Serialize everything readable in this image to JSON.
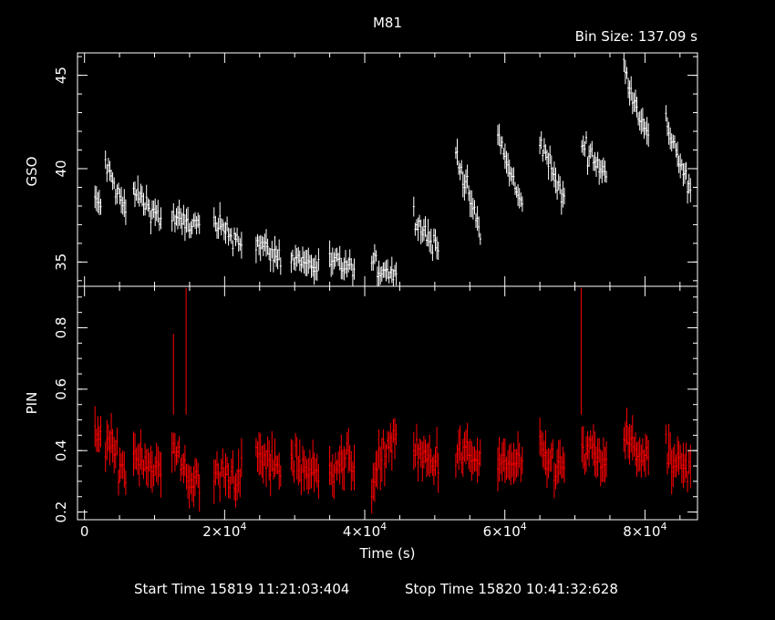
{
  "chart_data": {
    "type": "line",
    "title": "M81",
    "bin_size_label": "Bin Size: 137.09 s",
    "xlabel": "Time (s)",
    "xlim": [
      -1000,
      87500
    ],
    "x_ticks": [
      0,
      20000,
      40000,
      60000,
      80000
    ],
    "x_tick_labels": [
      {
        "mantissa": "0",
        "exp": ""
      },
      {
        "mantissa": "2×10",
        "exp": "4"
      },
      {
        "mantissa": "4×10",
        "exp": "4"
      },
      {
        "mantissa": "6×10",
        "exp": "4"
      },
      {
        "mantissa": "8×10",
        "exp": "4"
      }
    ],
    "panels": [
      {
        "name": "GSO",
        "ylabel": "GSO",
        "color": "#ffffff",
        "ylim": [
          33.7,
          46.2
        ],
        "y_ticks": [
          35,
          40,
          45
        ],
        "y_tick_labels": [
          "35",
          "40",
          "45"
        ],
        "segments": [
          {
            "t0": 1500,
            "t1": 2500,
            "v0": 38.2,
            "v1": 38.1
          },
          {
            "t0": 3000,
            "t1": 6000,
            "v0": 40.2,
            "v1": 37.6
          },
          {
            "t0": 7000,
            "t1": 11000,
            "v0": 38.8,
            "v1": 37.3
          },
          {
            "t0": 12500,
            "t1": 16500,
            "v0": 37.3,
            "v1": 36.9
          },
          {
            "t0": 18500,
            "t1": 22500,
            "v0": 37.0,
            "v1": 36.1
          },
          {
            "t0": 24500,
            "t1": 28000,
            "v0": 36.0,
            "v1": 35.2
          },
          {
            "t0": 29500,
            "t1": 33500,
            "v0": 35.3,
            "v1": 34.7
          },
          {
            "t0": 35000,
            "t1": 38500,
            "v0": 35.0,
            "v1": 34.6
          },
          {
            "t0": 41000,
            "t1": 44500,
            "v0": 34.8,
            "v1": 34.4
          },
          {
            "t0": 47000,
            "t1": 50500,
            "v0": 37.5,
            "v1": 35.6
          },
          {
            "t0": 53000,
            "t1": 56500,
            "v0": 41.0,
            "v1": 36.5
          },
          {
            "t0": 59000,
            "t1": 62500,
            "v0": 41.8,
            "v1": 37.8
          },
          {
            "t0": 65000,
            "t1": 68500,
            "v0": 41.6,
            "v1": 38.2
          },
          {
            "t0": 71000,
            "t1": 74500,
            "v0": 41.4,
            "v1": 39.6
          },
          {
            "t0": 77000,
            "t1": 80500,
            "v0": 45.5,
            "v1": 41.5
          },
          {
            "t0": 83000,
            "t1": 86500,
            "v0": 42.6,
            "v1": 38.6
          }
        ]
      },
      {
        "name": "PIN",
        "ylabel": "PIN",
        "color": "#ff0000",
        "ylim": [
          0.175,
          0.935
        ],
        "y_ticks": [
          0.2,
          0.4,
          0.6,
          0.8
        ],
        "y_tick_labels": [
          "0.2",
          "0.4",
          "0.6",
          "0.8"
        ],
        "segments": [
          {
            "t0": 1500,
            "t1": 2500,
            "v0": 0.45,
            "v1": 0.42
          },
          {
            "t0": 3000,
            "t1": 6000,
            "v0": 0.44,
            "v1": 0.32
          },
          {
            "t0": 7000,
            "t1": 11000,
            "v0": 0.4,
            "v1": 0.33
          },
          {
            "t0": 12500,
            "t1": 16500,
            "v0": 0.4,
            "v1": 0.27
          },
          {
            "t0": 18500,
            "t1": 22500,
            "v0": 0.32,
            "v1": 0.32
          },
          {
            "t0": 24500,
            "t1": 28000,
            "v0": 0.38,
            "v1": 0.34
          },
          {
            "t0": 29500,
            "t1": 33500,
            "v0": 0.38,
            "v1": 0.31
          },
          {
            "t0": 35000,
            "t1": 38500,
            "v0": 0.36,
            "v1": 0.36
          },
          {
            "t0": 41000,
            "t1": 44500,
            "v0": 0.3,
            "v1": 0.47
          },
          {
            "t0": 47000,
            "t1": 50500,
            "v0": 0.38,
            "v1": 0.36
          },
          {
            "t0": 53000,
            "t1": 56500,
            "v0": 0.4,
            "v1": 0.36
          },
          {
            "t0": 59000,
            "t1": 62500,
            "v0": 0.36,
            "v1": 0.35
          },
          {
            "t0": 65000,
            "t1": 68500,
            "v0": 0.38,
            "v1": 0.34
          },
          {
            "t0": 71000,
            "t1": 74500,
            "v0": 0.4,
            "v1": 0.36
          },
          {
            "t0": 77000,
            "t1": 80500,
            "v0": 0.44,
            "v1": 0.37
          },
          {
            "t0": 83000,
            "t1": 86500,
            "v0": 0.38,
            "v1": 0.32
          }
        ],
        "spikes": [
          {
            "t": 12700,
            "v": 0.78
          },
          {
            "t": 14500,
            "v": 0.93
          },
          {
            "t": 70900,
            "v": 0.93
          }
        ]
      }
    ]
  },
  "footer": {
    "start_time": "Start Time 15819 11:21:03:404",
    "stop_time": "Stop Time 15820 10:41:32:628"
  }
}
